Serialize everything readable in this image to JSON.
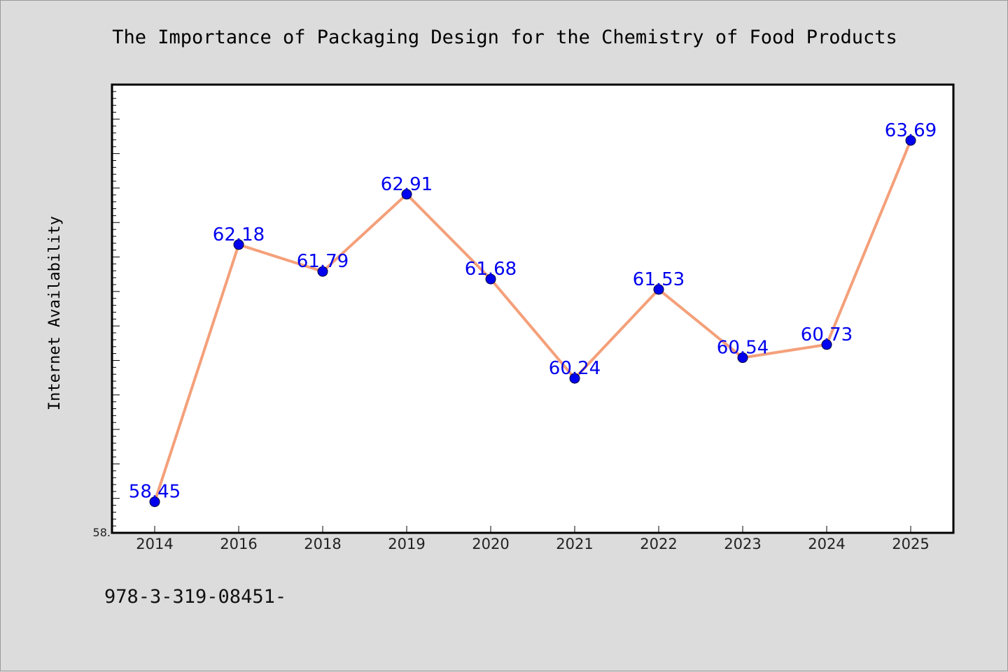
{
  "chart_data": {
    "type": "line",
    "title": "The Importance of Packaging Design for the Chemistry of Food Products",
    "xlabel": "",
    "ylabel": "Internet Availability",
    "categories": [
      "2014",
      "2016",
      "2018",
      "2019",
      "2020",
      "2021",
      "2022",
      "2023",
      "2024",
      "2025"
    ],
    "series": [
      {
        "values": [
          58.45,
          62.18,
          61.79,
          62.91,
          61.68,
          60.24,
          61.53,
          60.54,
          60.73,
          63.69
        ],
        "labels": [
          "58.45",
          "62.18",
          "61.79",
          "62.91",
          "61.68",
          "60.24",
          "61.53",
          "60.54",
          "60.73",
          "63.69"
        ],
        "line_color": "#f4a07a",
        "marker_color": "#0000ee"
      }
    ],
    "ylim": [
      58.0,
      64.5
    ],
    "y_tick_labels": [
      {
        "value": 58.0,
        "label": "58."
      }
    ],
    "grid": false,
    "legend": "none"
  },
  "footer": {
    "text": "978-3-319-08451-"
  },
  "colors": {
    "background": "#dcdcdc",
    "plot_background": "#ffffff",
    "axis": "#000000"
  }
}
